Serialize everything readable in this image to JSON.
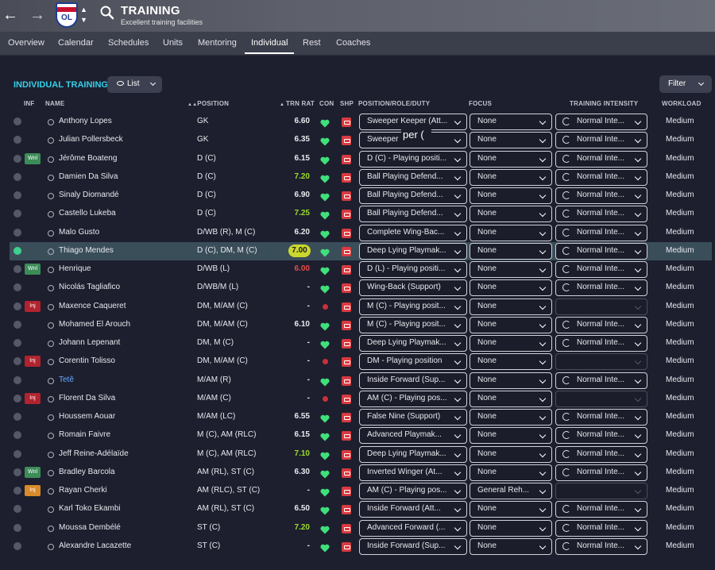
{
  "header": {
    "title": "TRAINING",
    "subtitle": "Excellent training facilities",
    "club_crest_text": "OL"
  },
  "tabs": [
    "Overview",
    "Calendar",
    "Schedules",
    "Units",
    "Mentoring",
    "Individual",
    "Rest",
    "Coaches"
  ],
  "active_tab": "Individual",
  "section": {
    "title": "INDIVIDUAL TRAINING",
    "view_label": "List",
    "filter_label": "Filter"
  },
  "columns": {
    "inf": "INF",
    "name": "NAME",
    "position": "POSITION",
    "trn_rat": "TRN RAT",
    "con": "CON",
    "shp": "SHP",
    "prd": "POSITION/ROLE/DUTY",
    "focus": "FOCUS",
    "intensity": "TRAINING INTENSITY",
    "workload": "WORKLOAD"
  },
  "tooltip_text": "per (",
  "players": [
    {
      "name": "Anthony Lopes",
      "pos": "GK",
      "rat": "6.60",
      "rat_style": "",
      "badge": "",
      "con": "ok",
      "role": "Sweeper Keeper (Att...",
      "focus": "None",
      "intensity": "Normal Inte...",
      "workload": "Medium"
    },
    {
      "name": "Julian Pollersbeck",
      "pos": "GK",
      "rat": "6.35",
      "rat_style": "",
      "badge": "",
      "con": "ok",
      "role": "Sweeper K",
      "focus": "None",
      "intensity": "Normal Inte...",
      "workload": "Medium"
    },
    {
      "name": "Jérôme Boateng",
      "pos": "D (C)",
      "rat": "6.15",
      "rat_style": "",
      "badge": "Wnl",
      "con": "ok",
      "role": "D (C) - Playing positi...",
      "focus": "None",
      "intensity": "Normal Inte...",
      "workload": "Medium"
    },
    {
      "name": "Damien Da Silva",
      "pos": "D (C)",
      "rat": "7.20",
      "rat_style": "g",
      "badge": "",
      "con": "ok",
      "role": "Ball Playing Defend...",
      "focus": "None",
      "intensity": "Normal Inte...",
      "workload": "Medium"
    },
    {
      "name": "Sinaly Diomandé",
      "pos": "D (C)",
      "rat": "6.90",
      "rat_style": "",
      "badge": "",
      "con": "ok",
      "role": "Ball Playing Defend...",
      "focus": "None",
      "intensity": "Normal Inte...",
      "workload": "Medium"
    },
    {
      "name": "Castello Lukeba",
      "pos": "D (C)",
      "rat": "7.25",
      "rat_style": "g",
      "badge": "",
      "con": "ok",
      "role": "Ball Playing Defend...",
      "focus": "None",
      "intensity": "Normal Inte...",
      "workload": "Medium"
    },
    {
      "name": "Malo Gusto",
      "pos": "D/WB (R), M (C)",
      "rat": "6.20",
      "rat_style": "",
      "badge": "",
      "con": "ok",
      "role": "Complete Wing-Bac...",
      "focus": "None",
      "intensity": "Normal Inte...",
      "workload": "Medium"
    },
    {
      "name": "Thiago Mendes",
      "pos": "D (C), DM, M (C)",
      "rat": "7.00",
      "rat_style": "hl",
      "badge": "",
      "con": "ok",
      "role": "Deep Lying Playmak...",
      "focus": "None",
      "intensity": "Normal Inte...",
      "workload": "Medium",
      "selected": true
    },
    {
      "name": "Henrique",
      "pos": "D/WB (L)",
      "rat": "6.00",
      "rat_style": "r",
      "badge": "Wnl",
      "con": "ok",
      "role": "D (L) - Playing positi...",
      "focus": "None",
      "intensity": "Normal Inte...",
      "workload": "Medium"
    },
    {
      "name": "Nicolás Tagliafico",
      "pos": "D/WB/M (L)",
      "rat": "-",
      "rat_style": "",
      "badge": "",
      "con": "ok",
      "role": "Wing-Back (Support)",
      "focus": "None",
      "intensity": "Normal Inte...",
      "workload": "Medium"
    },
    {
      "name": "Maxence Caqueret",
      "pos": "DM, M/AM (C)",
      "rat": "-",
      "rat_style": "",
      "badge": "Inj",
      "con": "inj",
      "role": "M (C) - Playing posit...",
      "focus": "None",
      "intensity": "",
      "workload": "Medium"
    },
    {
      "name": "Mohamed El Arouch",
      "pos": "DM, M/AM (C)",
      "rat": "6.10",
      "rat_style": "",
      "badge": "",
      "con": "ok",
      "role": "M (C) - Playing posit...",
      "focus": "None",
      "intensity": "Normal Inte...",
      "workload": "Medium"
    },
    {
      "name": "Johann Lepenant",
      "pos": "DM, M (C)",
      "rat": "-",
      "rat_style": "",
      "badge": "",
      "con": "ok",
      "role": "Deep Lying Playmak...",
      "focus": "None",
      "intensity": "Normal Inte...",
      "workload": "Medium"
    },
    {
      "name": "Corentin Tolisso",
      "pos": "DM, M/AM (C)",
      "rat": "-",
      "rat_style": "",
      "badge": "Inj",
      "con": "inj",
      "role": "DM - Playing position",
      "focus": "None",
      "intensity": "",
      "workload": "Medium"
    },
    {
      "name": "Tetê",
      "pos": "M/AM (R)",
      "rat": "-",
      "rat_style": "",
      "badge": "",
      "con": "ok",
      "role": "Inside Forward (Sup...",
      "focus": "None",
      "intensity": "Normal Inte...",
      "workload": "Medium",
      "link": true
    },
    {
      "name": "Florent Da Silva",
      "pos": "M/AM (C)",
      "rat": "-",
      "rat_style": "",
      "badge": "Inj",
      "con": "inj",
      "role": "AM (C) - Playing pos...",
      "focus": "None",
      "intensity": "",
      "workload": "Medium"
    },
    {
      "name": "Houssem Aouar",
      "pos": "M/AM (LC)",
      "rat": "6.55",
      "rat_style": "",
      "badge": "",
      "con": "ok",
      "role": "False Nine (Support)",
      "focus": "None",
      "intensity": "Normal Inte...",
      "workload": "Medium"
    },
    {
      "name": "Romain Faivre",
      "pos": "M (C), AM (RLC)",
      "rat": "6.15",
      "rat_style": "",
      "badge": "",
      "con": "ok",
      "role": "Advanced Playmak...",
      "focus": "None",
      "intensity": "Normal Inte...",
      "workload": "Medium"
    },
    {
      "name": "Jeff Reine-Adélaïde",
      "pos": "M (C), AM (RLC)",
      "rat": "7.10",
      "rat_style": "g",
      "badge": "",
      "con": "ok",
      "role": "Deep Lying Playmak...",
      "focus": "None",
      "intensity": "Normal Inte...",
      "workload": "Medium"
    },
    {
      "name": "Bradley Barcola",
      "pos": "AM (RL), ST (C)",
      "rat": "6.30",
      "rat_style": "",
      "badge": "Wnl",
      "con": "ok",
      "role": "Inverted Winger (At...",
      "focus": "None",
      "intensity": "Normal Inte...",
      "workload": "Medium"
    },
    {
      "name": "Rayan Cherki",
      "pos": "AM (RLC), ST (C)",
      "rat": "-",
      "rat_style": "",
      "badge": "Inj",
      "badge_style": "injo",
      "con": "ok",
      "role": "AM (C) - Playing pos...",
      "focus": "General Reh...",
      "intensity": "",
      "workload": "Medium"
    },
    {
      "name": "Karl Toko Ekambi",
      "pos": "AM (RL), ST (C)",
      "rat": "6.50",
      "rat_style": "",
      "badge": "",
      "con": "ok",
      "role": "Inside Forward (Att...",
      "focus": "None",
      "intensity": "Normal Inte...",
      "workload": "Medium"
    },
    {
      "name": "Moussa Dembélé",
      "pos": "ST (C)",
      "rat": "7.20",
      "rat_style": "g",
      "badge": "",
      "con": "ok",
      "role": "Advanced Forward (...",
      "focus": "None",
      "intensity": "Normal Inte...",
      "workload": "Medium"
    },
    {
      "name": "Alexandre Lacazette",
      "pos": "ST (C)",
      "rat": "-",
      "rat_style": "",
      "badge": "",
      "con": "ok",
      "role": "Inside Forward (Sup...",
      "focus": "None",
      "intensity": "Normal Inte...",
      "workload": "Medium"
    }
  ]
}
